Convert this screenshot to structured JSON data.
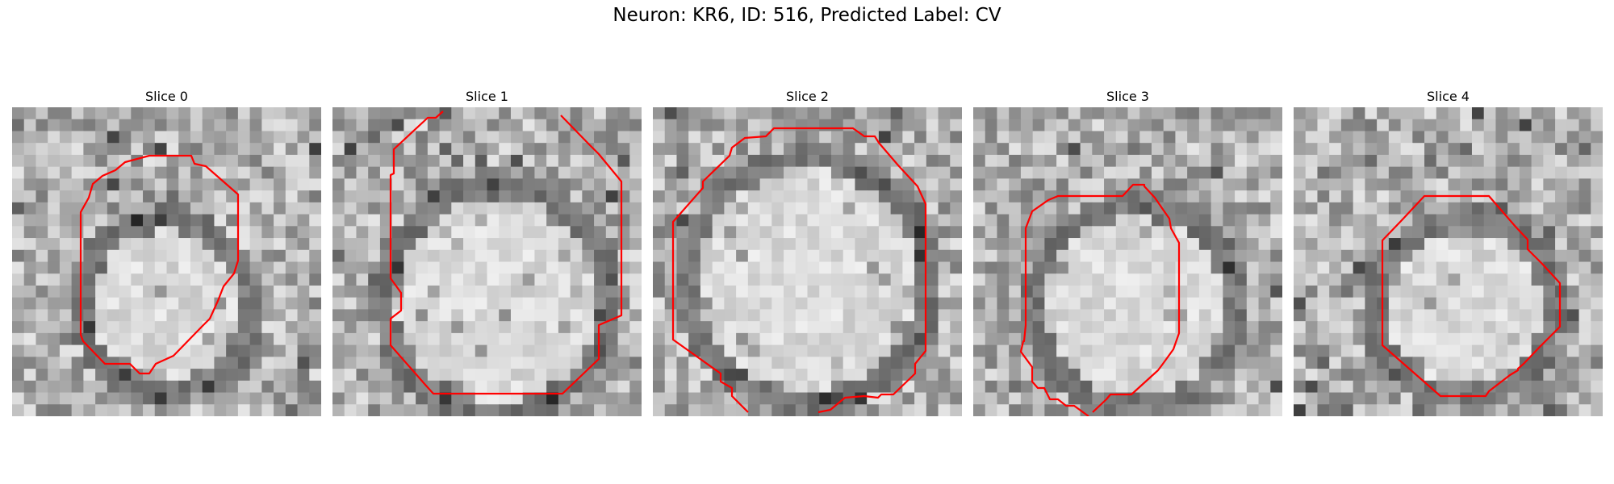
{
  "figure": {
    "title": "Neuron: KR6, ID: 516, Predicted Label: CV",
    "contour_color": "#ff0000",
    "colormap": "gray"
  },
  "panels": [
    {
      "title": "Slice 0"
    },
    {
      "title": "Slice 1"
    },
    {
      "title": "Slice 2"
    },
    {
      "title": "Slice 3"
    },
    {
      "title": "Slice 4"
    }
  ]
}
